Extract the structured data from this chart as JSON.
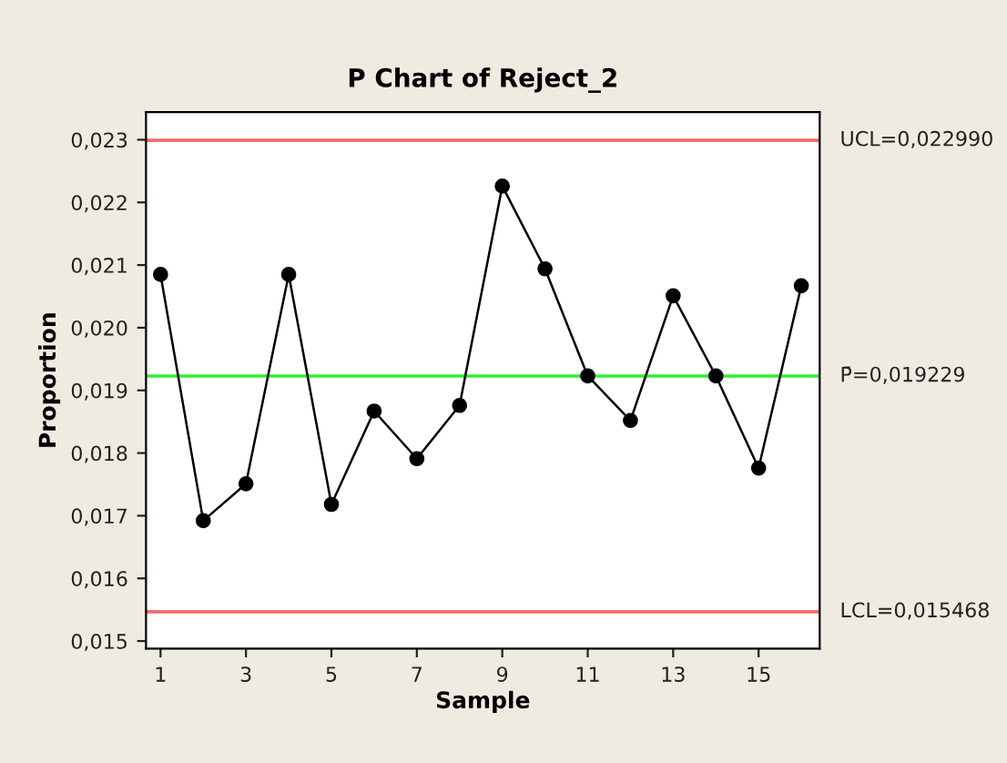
{
  "chart_data": {
    "type": "line",
    "title": "P Chart of Reject_2",
    "xlabel": "Sample",
    "ylabel": "Proportion",
    "x": [
      1,
      2,
      3,
      4,
      5,
      6,
      7,
      8,
      9,
      10,
      11,
      12,
      13,
      14,
      15,
      16
    ],
    "series": [
      {
        "color": "#000000",
        "values": [
          0.02085,
          0.01692,
          0.01751,
          0.02085,
          0.01718,
          0.01867,
          0.01791,
          0.01876,
          0.02226,
          0.02094,
          0.01923,
          0.01852,
          0.02051,
          0.01923,
          0.01776,
          0.02067
        ]
      }
    ],
    "marker": "circle",
    "line_style": "solid",
    "grid": false,
    "legend": false,
    "xlim": [
      0.66,
      16.43
    ],
    "xticks": [
      1,
      3,
      5,
      7,
      9,
      11,
      13,
      15
    ],
    "ylim": [
      0.01488,
      0.02344
    ],
    "yticks": [
      {
        "value": 0.015,
        "label": "0,015"
      },
      {
        "value": 0.016,
        "label": "0,016"
      },
      {
        "value": 0.017,
        "label": "0,017"
      },
      {
        "value": 0.018,
        "label": "0,018"
      },
      {
        "value": 0.019,
        "label": "0,019"
      },
      {
        "value": 0.02,
        "label": "0,020"
      },
      {
        "value": 0.021,
        "label": "0,021"
      },
      {
        "value": 0.022,
        "label": "0,022"
      },
      {
        "value": 0.023,
        "label": "0,023"
      }
    ],
    "ref_lines": [
      {
        "axis": "y",
        "value": 0.02299,
        "label": "UCL=0,022990",
        "color": "#f26d6d"
      },
      {
        "axis": "y",
        "value": 0.019229,
        "label": "P̄=0,019229",
        "color": "#33ee33"
      },
      {
        "axis": "y",
        "value": 0.015468,
        "label": "LCL=0,015468",
        "color": "#f26d6d"
      }
    ]
  }
}
